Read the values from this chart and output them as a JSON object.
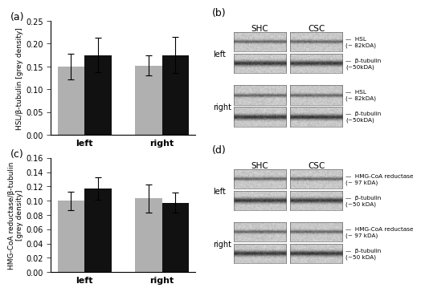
{
  "panel_a": {
    "label": "(a)",
    "ylabel": "HSL/β-tubulin [grey density]",
    "xtick_labels": [
      "left",
      "right"
    ],
    "ylim": [
      0,
      0.25
    ],
    "yticks": [
      0.0,
      0.05,
      0.1,
      0.15,
      0.2,
      0.25
    ],
    "shc_values": [
      0.149,
      0.152
    ],
    "csc_values": [
      0.175,
      0.175
    ],
    "shc_errors": [
      0.028,
      0.022
    ],
    "csc_errors": [
      0.038,
      0.04
    ]
  },
  "panel_c": {
    "label": "(c)",
    "ylabel": "HMG-CoA reductase/β-tubulin\n[grey density]",
    "xtick_labels": [
      "left",
      "right"
    ],
    "ylim": [
      0,
      0.16
    ],
    "yticks": [
      0.0,
      0.02,
      0.04,
      0.06,
      0.08,
      0.1,
      0.12,
      0.14,
      0.16
    ],
    "shc_values": [
      0.1,
      0.103
    ],
    "csc_values": [
      0.117,
      0.097
    ],
    "shc_errors": [
      0.013,
      0.02
    ],
    "csc_errors": [
      0.016,
      0.014
    ]
  },
  "panel_b": {
    "label": "(b)",
    "col_labels": [
      "SHC",
      "CSC"
    ],
    "row_labels": [
      "left",
      "right"
    ],
    "band_labels": [
      [
        "HSL\n(~ 82kDA)",
        "β-tubulin\n(~50kDA)"
      ],
      [
        "HSL\n(~ 82kDA)",
        "β-tubulin\n(~50kDA)"
      ]
    ]
  },
  "panel_d": {
    "label": "(d)",
    "col_labels": [
      "SHC",
      "CSC"
    ],
    "row_labels": [
      "left",
      "right"
    ],
    "band_labels": [
      [
        "HMG-CoA reductase\n(~ 97 kDA)",
        "β-tubulin\n(~50 kDA)"
      ],
      [
        "HMG-CoA reductase\n(~ 97 kDA)",
        "β-tubulin\n(~50 kDA)"
      ]
    ]
  },
  "shc_color": "#b0b0b0",
  "csc_color": "#111111",
  "bar_width": 0.35,
  "background_color": "#ffffff"
}
